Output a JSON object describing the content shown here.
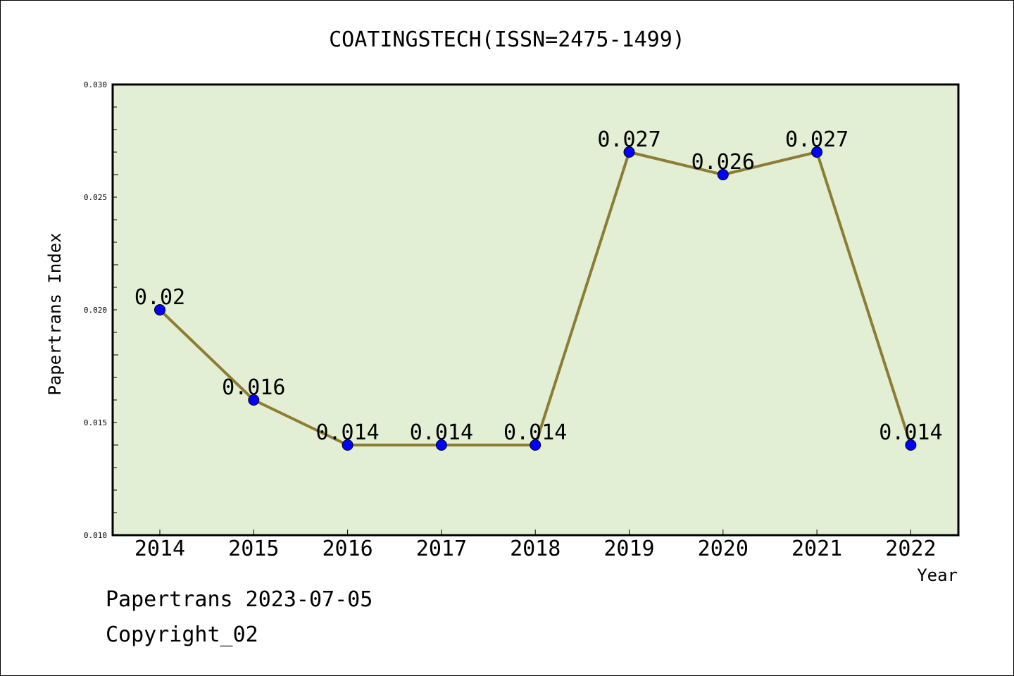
{
  "chart_data": {
    "type": "line",
    "title": "COATINGSTECH(ISSN=2475-1499)",
    "xlabel": "Year",
    "ylabel": "Papertrans Index",
    "categories": [
      "2014",
      "2015",
      "2016",
      "2017",
      "2018",
      "2019",
      "2020",
      "2021",
      "2022"
    ],
    "series": [
      {
        "values": [
          0.02,
          0.016,
          0.014,
          0.014,
          0.014,
          0.027,
          0.026,
          0.027,
          0.014
        ],
        "labels": [
          "0.02",
          "0.016",
          "0.014",
          "0.014",
          "0.014",
          "0.027",
          "0.026",
          "0.027",
          "0.014"
        ]
      }
    ],
    "ylim": [
      0.01,
      0.03
    ],
    "yticks": [
      "0.010",
      "0.015",
      "0.020",
      "0.025",
      "0.030"
    ],
    "grid": false,
    "colors": {
      "plot_background": "#e2efd4",
      "line": "#8c7d33",
      "marker": "#0000ff"
    }
  },
  "footer": {
    "date_line": "Papertrans 2023-07-05",
    "copyright": "Copyright_02"
  }
}
